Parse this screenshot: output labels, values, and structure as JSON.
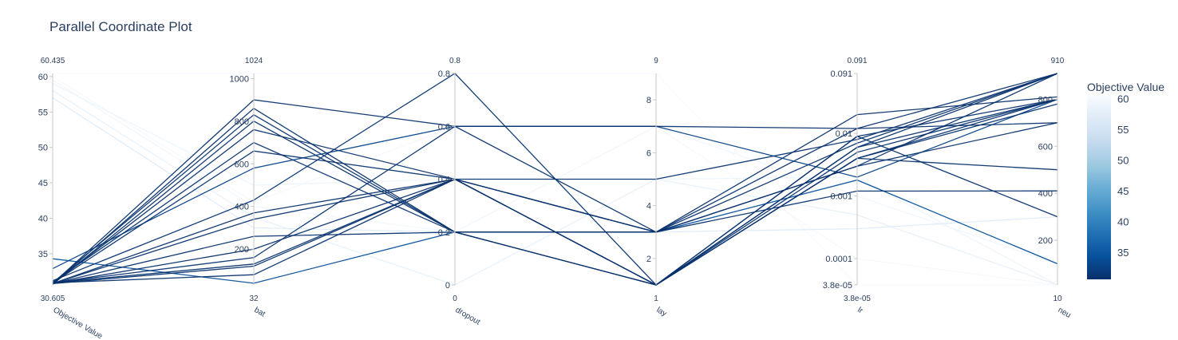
{
  "chart_data": {
    "type": "parallel_coordinates",
    "title": "Parallel Coordinate Plot",
    "colorbar": {
      "title": "Objective Value",
      "range": [
        30.605,
        60.435
      ],
      "ticks": [
        "60",
        "55",
        "50",
        "45",
        "40",
        "35"
      ],
      "tick_values": [
        60,
        55,
        50,
        45,
        40,
        35
      ],
      "colorscale": [
        "#08306b",
        "#08519c",
        "#2171b5",
        "#4292c6",
        "#6baed6",
        "#9ecae1",
        "#c6dbef",
        "#deebf7",
        "#f7fbff"
      ]
    },
    "dimensions": [
      {
        "label": "Objective Value",
        "min_label": "30.605",
        "max_label": "60.435",
        "range": [
          30.605,
          60.435
        ],
        "scale": "linear",
        "ticks": [
          "60",
          "55",
          "50",
          "45",
          "40",
          "35"
        ],
        "tick_values": [
          60,
          55,
          50,
          45,
          40,
          35
        ]
      },
      {
        "label": "bat",
        "min_label": "32",
        "max_label": "1024",
        "range": [
          32,
          1024
        ],
        "scale": "linear",
        "ticks": [
          "1000",
          "800",
          "600",
          "400",
          "200"
        ],
        "tick_values": [
          1000,
          800,
          600,
          400,
          200
        ]
      },
      {
        "label": "dropout",
        "min_label": "0",
        "max_label": "0.8",
        "range": [
          0,
          0.8
        ],
        "scale": "linear",
        "ticks": [
          "0.8",
          "0.6",
          "0.4",
          "0.2",
          "0"
        ],
        "tick_values": [
          0.8,
          0.6,
          0.4,
          0.2,
          0
        ]
      },
      {
        "label": "lay",
        "min_label": "1",
        "max_label": "9",
        "range": [
          1,
          9
        ],
        "scale": "linear",
        "ticks": [
          "8",
          "6",
          "4",
          "2"
        ],
        "tick_values": [
          8,
          6,
          4,
          2
        ]
      },
      {
        "label": "lr",
        "min_label": "3.8e-05",
        "max_label": "0.091",
        "range": [
          3.8e-05,
          0.091
        ],
        "scale": "log",
        "ticks": [
          "0.091",
          "0.01",
          "0.001",
          "0.0001",
          "3.8e-05"
        ],
        "tick_values": [
          0.091,
          0.01,
          0.001,
          0.0001,
          3.8e-05
        ]
      },
      {
        "label": "neu",
        "min_label": "10",
        "max_label": "910",
        "range": [
          10,
          910
        ],
        "scale": "linear",
        "ticks": [
          "800",
          "600",
          "400",
          "200"
        ],
        "tick_values": [
          800,
          600,
          400,
          200
        ]
      }
    ],
    "trials": [
      [
        30.8,
        900,
        0.6,
        7,
        0.012,
        700
      ],
      [
        30.7,
        860,
        0.2,
        1,
        0.006,
        910
      ],
      [
        30.9,
        830,
        0.2,
        1,
        0.004,
        800
      ],
      [
        30.7,
        800,
        0.2,
        3,
        0.02,
        810
      ],
      [
        30.8,
        760,
        0.4,
        3,
        0.003,
        910
      ],
      [
        31.0,
        700,
        0.2,
        1,
        0.005,
        800
      ],
      [
        30.9,
        660,
        0.4,
        5,
        0.008,
        910
      ],
      [
        32.9,
        580,
        0.6,
        7,
        0.002,
        800
      ],
      [
        31.2,
        430,
        0.8,
        1,
        0.004,
        780
      ],
      [
        30.8,
        370,
        0.4,
        3,
        0.007,
        910
      ],
      [
        30.8,
        340,
        0.4,
        1,
        0.009,
        800
      ],
      [
        30.8,
        260,
        0.2,
        3,
        0.003,
        700
      ],
      [
        30.8,
        200,
        0.4,
        1,
        0.009,
        300
      ],
      [
        30.9,
        160,
        0.6,
        3,
        0.012,
        910
      ],
      [
        30.9,
        130,
        0.4,
        1,
        0.006,
        800
      ],
      [
        30.8,
        120,
        0.4,
        3,
        0.0012,
        410
      ],
      [
        30.9,
        80,
        0.4,
        1,
        0.004,
        500
      ],
      [
        34.3,
        40,
        0.2,
        3,
        0.0018,
        100
      ],
      [
        60.4,
        1024,
        0.8,
        9,
        3.8e-05,
        10
      ],
      [
        60.0,
        420,
        0.6,
        7,
        0.0001,
        10
      ],
      [
        59.5,
        400,
        0.2,
        7,
        0.001,
        100
      ],
      [
        59.0,
        500,
        0.4,
        5,
        0.002,
        10
      ],
      [
        58.0,
        350,
        0.0,
        5,
        0.0005,
        10
      ],
      [
        57.0,
        300,
        0.2,
        3,
        0.0003,
        300
      ]
    ]
  }
}
